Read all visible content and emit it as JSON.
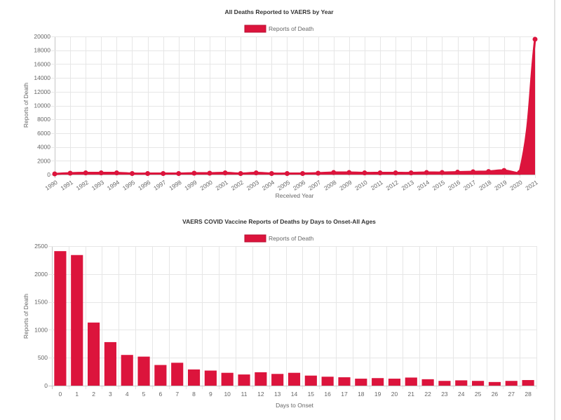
{
  "colors": {
    "grid": "#e6e6e6",
    "axis": "#c6c6c6"
  },
  "chart_data": [
    {
      "type": "area",
      "title": "All Deaths Reported to VAERS by Year",
      "xlabel": "Received Year",
      "ylabel": "Reports of Death",
      "legend": "top",
      "grid": true,
      "categories": [
        "1990",
        "1991",
        "1992",
        "1993",
        "1994",
        "1995",
        "1996",
        "1997",
        "1998",
        "1999",
        "2000",
        "2001",
        "2002",
        "2003",
        "2004",
        "2005",
        "2006",
        "2007",
        "2008",
        "2009",
        "2010",
        "2011",
        "2012",
        "2013",
        "2014",
        "2015",
        "2016",
        "2017",
        "2018",
        "2019",
        "2020",
        "2021"
      ],
      "series": [
        {
          "name": "Reports of Death",
          "color": "#dc143c",
          "values": [
            100,
            200,
            250,
            250,
            250,
            150,
            150,
            150,
            150,
            200,
            200,
            250,
            150,
            250,
            150,
            150,
            150,
            200,
            300,
            300,
            250,
            250,
            250,
            250,
            300,
            300,
            350,
            400,
            450,
            600,
            300,
            19600
          ]
        }
      ],
      "ylim": [
        0,
        20000
      ],
      "y_ticks": [
        0,
        2000,
        4000,
        6000,
        8000,
        10000,
        12000,
        14000,
        16000,
        18000,
        20000
      ]
    },
    {
      "type": "bar",
      "title": "VAERS COVID Vaccine Reports of Deaths by Days to Onset-All Ages",
      "xlabel": "Days to Onset",
      "ylabel": "Reports of Death",
      "legend": "top",
      "grid": true,
      "categories": [
        "0",
        "1",
        "2",
        "3",
        "4",
        "5",
        "6",
        "7",
        "8",
        "9",
        "10",
        "11",
        "12",
        "13",
        "14",
        "15",
        "16",
        "17",
        "18",
        "19",
        "20",
        "21",
        "22",
        "23",
        "24",
        "25",
        "26",
        "27",
        "28"
      ],
      "series": [
        {
          "name": "Reports of Death",
          "color": "#dc143c",
          "values": [
            2410,
            2340,
            1130,
            780,
            550,
            520,
            370,
            410,
            290,
            270,
            230,
            200,
            240,
            210,
            230,
            180,
            160,
            150,
            125,
            135,
            125,
            145,
            115,
            85,
            95,
            85,
            65,
            85,
            100
          ]
        }
      ],
      "ylim": [
        0,
        2500
      ],
      "y_ticks": [
        0,
        500,
        1000,
        1500,
        2000,
        2500
      ]
    }
  ]
}
